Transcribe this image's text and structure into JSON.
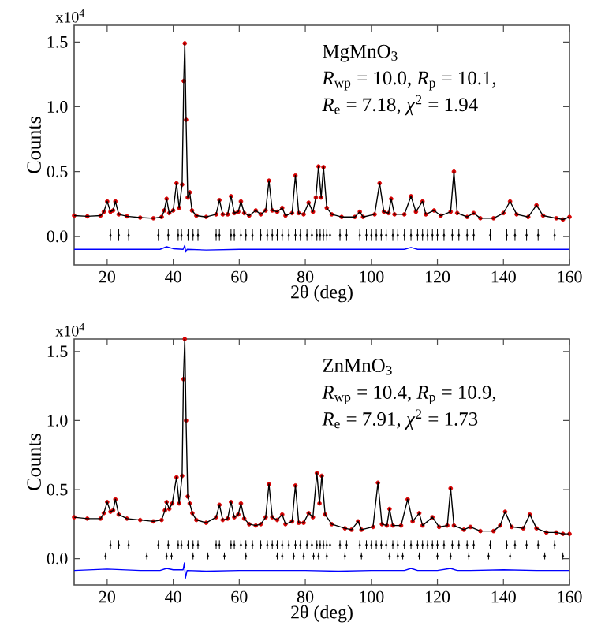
{
  "chart_data": [
    {
      "type": "line",
      "xlabel": "2θ (deg)",
      "ylabel": "Counts",
      "xlim": [
        10,
        160
      ],
      "ylim": [
        -0.22,
        1.63
      ],
      "xticks": [
        20,
        40,
        60,
        80,
        100,
        120,
        140,
        160
      ],
      "yticks": [
        {
          "value": 0,
          "label": "0.0"
        },
        {
          "value": 0.5,
          "label": "0.5"
        },
        {
          "value": 1.0,
          "label": "1.0"
        },
        1.5
      ],
      "annotations": [
        "x10$^{4}$",
        "MgMnO$_{3}$",
        "*R*$_{wp}$ = 10.0, *R*$_{p}$ = 10.1,",
        "*R*$_{e}$ = 7.18, *χ*$^{2}$ = 1.94"
      ],
      "x": [
        10,
        14,
        18,
        19,
        20,
        21,
        21.8,
        22.5,
        23.5,
        26,
        30,
        34,
        36.5,
        37.3,
        38,
        38.8,
        40,
        41,
        41.8,
        42.7,
        43.2,
        43.5,
        43.9,
        44.4,
        45,
        45.7,
        47,
        50,
        53,
        54,
        55,
        56.5,
        57.5,
        58.5,
        59.7,
        60.5,
        61.5,
        63,
        65,
        66.5,
        68,
        69,
        70,
        71.5,
        73,
        74,
        76,
        77,
        78,
        79.5,
        81,
        82.3,
        83.2,
        84,
        84.8,
        85.5,
        86.5,
        88,
        91,
        95,
        96.5,
        97.5,
        101,
        102.5,
        103.8,
        105.2,
        106,
        107,
        110,
        112,
        113.5,
        115.5,
        116.5,
        119,
        121,
        124,
        125,
        126,
        129,
        131,
        133,
        137,
        140,
        142,
        144,
        147.5,
        150,
        152,
        156,
        158,
        160
      ],
      "series": [
        {
          "type": "scatter",
          "marker": "circle",
          "color": "#d40000",
          "values": [
            0.16,
            0.155,
            0.16,
            0.19,
            0.27,
            0.19,
            0.2,
            0.27,
            0.17,
            0.155,
            0.145,
            0.14,
            0.15,
            0.2,
            0.29,
            0.18,
            0.2,
            0.41,
            0.22,
            0.4,
            1.2,
            1.49,
            0.9,
            0.3,
            0.34,
            0.2,
            0.16,
            0.15,
            0.17,
            0.28,
            0.17,
            0.17,
            0.31,
            0.18,
            0.19,
            0.27,
            0.18,
            0.16,
            0.2,
            0.17,
            0.2,
            0.43,
            0.2,
            0.19,
            0.22,
            0.16,
            0.18,
            0.47,
            0.18,
            0.17,
            0.26,
            0.19,
            0.3,
            0.54,
            0.3,
            0.535,
            0.22,
            0.17,
            0.15,
            0.15,
            0.19,
            0.15,
            0.17,
            0.41,
            0.19,
            0.18,
            0.29,
            0.17,
            0.17,
            0.31,
            0.19,
            0.27,
            0.17,
            0.2,
            0.16,
            0.19,
            0.5,
            0.18,
            0.15,
            0.18,
            0.14,
            0.14,
            0.18,
            0.27,
            0.17,
            0.15,
            0.24,
            0.16,
            0.14,
            0.13,
            0.15
          ]
        },
        {
          "color": "#000000",
          "values": [
            0.16,
            0.155,
            0.16,
            0.19,
            0.27,
            0.19,
            0.2,
            0.27,
            0.17,
            0.155,
            0.145,
            0.14,
            0.15,
            0.2,
            0.29,
            0.18,
            0.2,
            0.41,
            0.22,
            0.4,
            1.2,
            1.49,
            0.9,
            0.3,
            0.34,
            0.2,
            0.16,
            0.15,
            0.17,
            0.28,
            0.17,
            0.17,
            0.31,
            0.18,
            0.19,
            0.27,
            0.18,
            0.16,
            0.2,
            0.17,
            0.2,
            0.43,
            0.2,
            0.19,
            0.22,
            0.16,
            0.18,
            0.47,
            0.18,
            0.17,
            0.26,
            0.19,
            0.3,
            0.54,
            0.3,
            0.535,
            0.22,
            0.17,
            0.15,
            0.15,
            0.19,
            0.15,
            0.17,
            0.41,
            0.19,
            0.18,
            0.29,
            0.17,
            0.17,
            0.31,
            0.19,
            0.27,
            0.17,
            0.2,
            0.16,
            0.19,
            0.5,
            0.18,
            0.15,
            0.18,
            0.14,
            0.14,
            0.18,
            0.27,
            0.17,
            0.15,
            0.24,
            0.16,
            0.14,
            0.13,
            0.15
          ]
        },
        {
          "color": "#0000ff",
          "x": [
            10,
            20,
            30,
            36,
            38,
            40,
            43,
            43.5,
            43.8,
            44.2,
            50,
            60,
            70,
            80,
            90,
            100,
            110,
            112,
            114,
            120,
            130,
            140,
            150,
            160
          ],
          "values": [
            -0.1,
            -0.1,
            -0.1,
            -0.1,
            -0.08,
            -0.095,
            -0.1,
            -0.07,
            -0.12,
            -0.1,
            -0.105,
            -0.1,
            -0.1,
            -0.1,
            -0.1,
            -0.1,
            -0.1,
            -0.085,
            -0.1,
            -0.1,
            -0.1,
            -0.1,
            -0.1,
            -0.1
          ]
        },
        {
          "type": "scatter",
          "marker": "diamond",
          "color": "#000000",
          "x": [
            21,
            23.5,
            26.5,
            35.5,
            38.5,
            41.5,
            42.5,
            44.5,
            46,
            47.5,
            53,
            54,
            57.5,
            58.5,
            60.5,
            62,
            64,
            66.5,
            68.5,
            70,
            71.5,
            73,
            75,
            77,
            78.5,
            80.5,
            82,
            83.5,
            84.5,
            85.5,
            86.5,
            87.5,
            90.5,
            92.5,
            96.5,
            98.5,
            100,
            101.5,
            103,
            104.5,
            106.5,
            108,
            110,
            112,
            114,
            115.5,
            117,
            118.5,
            120,
            122,
            124.5,
            126.5,
            129,
            131,
            136,
            141,
            143.5,
            147,
            150.5,
            155.5
          ],
          "values": [
            0.01,
            0.01,
            0.01,
            0.01,
            0.01,
            0.01,
            0.01,
            0.01,
            0.01,
            0.01,
            0.01,
            0.01,
            0.01,
            0.01,
            0.01,
            0.01,
            0.01,
            0.01,
            0.01,
            0.01,
            0.01,
            0.01,
            0.01,
            0.01,
            0.01,
            0.01,
            0.01,
            0.01,
            0.01,
            0.01,
            0.01,
            0.01,
            0.01,
            0.01,
            0.01,
            0.01,
            0.01,
            0.01,
            0.01,
            0.01,
            0.01,
            0.01,
            0.01,
            0.01,
            0.01,
            0.01,
            0.01,
            0.01,
            0.01,
            0.01,
            0.01,
            0.01,
            0.01,
            0.01,
            0.01,
            0.01,
            0.01,
            0.01,
            0.01,
            0.01
          ],
          "errors": [
            0.045,
            0.045,
            0.045,
            0.045,
            0.045,
            0.045,
            0.045,
            0.045,
            0.045,
            0.045,
            0.045,
            0.045,
            0.045,
            0.045,
            0.045,
            0.045,
            0.045,
            0.045,
            0.045,
            0.045,
            0.045,
            0.045,
            0.045,
            0.045,
            0.045,
            0.045,
            0.045,
            0.045,
            0.045,
            0.045,
            0.045,
            0.045,
            0.045,
            0.045,
            0.045,
            0.045,
            0.045,
            0.045,
            0.045,
            0.045,
            0.045,
            0.045,
            0.045,
            0.045,
            0.045,
            0.045,
            0.045,
            0.045,
            0.045,
            0.045,
            0.045,
            0.045,
            0.045,
            0.045,
            0.045,
            0.045,
            0.045,
            0.045,
            0.045,
            0.045
          ]
        }
      ]
    },
    {
      "type": "line",
      "xlabel": "2θ (deg)",
      "ylabel": "Counts",
      "xlim": [
        10,
        160
      ],
      "ylim": [
        -0.19,
        1.59
      ],
      "xticks": [
        20,
        40,
        60,
        80,
        100,
        120,
        140,
        160
      ],
      "yticks": [
        {
          "value": 0,
          "label": "0.0"
        },
        {
          "value": 0.5,
          "label": "0.5"
        },
        {
          "value": 1.0,
          "label": "1.0"
        },
        1.5
      ],
      "annotations": [
        "x10$^{4}$",
        "ZnMnO$_{3}$",
        "*R*$_{wp}$ = 10.4, *R*$_{p}$ = 10.9,",
        "*R*$_{e}$ = 7.91, *χ*$^{2}$ = 1.73"
      ],
      "x": [
        10,
        14,
        18,
        19,
        20,
        21,
        21.8,
        22.5,
        23.5,
        26,
        30,
        34,
        36.5,
        37.5,
        38,
        38.8,
        39.7,
        41,
        41.8,
        42.7,
        43.1,
        43.5,
        43.9,
        44.4,
        45,
        45.8,
        47,
        50,
        53,
        54,
        55,
        56.5,
        57.5,
        58.5,
        59.7,
        60.5,
        61.5,
        63,
        65,
        66.5,
        68,
        69,
        70,
        71.5,
        73,
        74,
        76,
        77,
        78,
        79.5,
        81,
        82.3,
        83.5,
        84.3,
        85,
        86,
        88,
        92,
        94,
        96,
        97,
        100.5,
        102,
        103.2,
        104.7,
        105.5,
        106.5,
        109,
        111,
        112.5,
        114.5,
        115.5,
        118.5,
        120.5,
        123,
        124,
        125,
        128,
        130,
        133,
        137,
        139,
        140.5,
        142.5,
        146,
        148,
        150,
        153,
        156,
        158,
        160
      ],
      "series": [
        {
          "type": "scatter",
          "marker": "circle",
          "color": "#d40000",
          "values": [
            0.3,
            0.29,
            0.29,
            0.33,
            0.41,
            0.34,
            0.35,
            0.43,
            0.32,
            0.29,
            0.28,
            0.27,
            0.28,
            0.35,
            0.41,
            0.36,
            0.4,
            0.59,
            0.4,
            0.6,
            1.3,
            1.59,
            1.0,
            0.45,
            0.4,
            0.33,
            0.28,
            0.26,
            0.3,
            0.39,
            0.28,
            0.29,
            0.41,
            0.3,
            0.32,
            0.4,
            0.29,
            0.25,
            0.24,
            0.25,
            0.3,
            0.54,
            0.3,
            0.28,
            0.32,
            0.25,
            0.27,
            0.53,
            0.26,
            0.26,
            0.33,
            0.3,
            0.62,
            0.4,
            0.6,
            0.32,
            0.25,
            0.22,
            0.21,
            0.27,
            0.21,
            0.23,
            0.55,
            0.25,
            0.24,
            0.36,
            0.24,
            0.24,
            0.43,
            0.27,
            0.33,
            0.24,
            0.3,
            0.23,
            0.24,
            0.51,
            0.24,
            0.21,
            0.23,
            0.2,
            0.2,
            0.24,
            0.34,
            0.23,
            0.22,
            0.32,
            0.22,
            0.19,
            0.19,
            0.18,
            0.18
          ]
        },
        {
          "color": "#000000",
          "values": [
            0.3,
            0.29,
            0.29,
            0.33,
            0.41,
            0.34,
            0.35,
            0.43,
            0.32,
            0.29,
            0.28,
            0.27,
            0.28,
            0.35,
            0.41,
            0.36,
            0.4,
            0.59,
            0.4,
            0.6,
            1.3,
            1.59,
            1.0,
            0.45,
            0.4,
            0.33,
            0.28,
            0.26,
            0.3,
            0.39,
            0.28,
            0.29,
            0.41,
            0.3,
            0.32,
            0.4,
            0.29,
            0.25,
            0.24,
            0.25,
            0.3,
            0.54,
            0.3,
            0.28,
            0.32,
            0.25,
            0.27,
            0.53,
            0.26,
            0.26,
            0.33,
            0.3,
            0.62,
            0.4,
            0.6,
            0.32,
            0.25,
            0.22,
            0.21,
            0.27,
            0.21,
            0.23,
            0.55,
            0.25,
            0.24,
            0.36,
            0.24,
            0.24,
            0.43,
            0.27,
            0.33,
            0.24,
            0.3,
            0.23,
            0.24,
            0.51,
            0.24,
            0.21,
            0.23,
            0.2,
            0.2,
            0.24,
            0.34,
            0.23,
            0.22,
            0.32,
            0.22,
            0.19,
            0.19,
            0.18,
            0.18
          ]
        },
        {
          "color": "#0000ff",
          "x": [
            10,
            20,
            30,
            36,
            38,
            40,
            43,
            43.4,
            43.7,
            44.2,
            50,
            60,
            70,
            80,
            90,
            100,
            110,
            112,
            114,
            120,
            124,
            126,
            130,
            140,
            150,
            160
          ],
          "values": [
            -0.085,
            -0.075,
            -0.085,
            -0.085,
            -0.07,
            -0.08,
            -0.08,
            -0.03,
            -0.14,
            -0.085,
            -0.09,
            -0.085,
            -0.085,
            -0.085,
            -0.09,
            -0.085,
            -0.085,
            -0.07,
            -0.085,
            -0.085,
            -0.07,
            -0.085,
            -0.085,
            -0.08,
            -0.085,
            -0.085
          ]
        },
        {
          "type": "scatter",
          "marker": "diamond",
          "color": "#000000",
          "x": [
            21,
            23.5,
            26.5,
            35.5,
            38.5,
            41.5,
            42.5,
            44.5,
            46,
            47.5,
            53,
            54,
            57.5,
            58.5,
            60.5,
            62,
            64,
            66.5,
            68.5,
            70,
            71.5,
            73,
            75,
            77,
            78.5,
            80.5,
            82,
            83.5,
            84.5,
            85.5,
            86.5,
            87.5,
            90.5,
            92.5,
            96.5,
            98.5,
            100,
            101.5,
            103,
            104.5,
            106.5,
            108,
            110,
            112,
            114,
            115.5,
            117,
            118.5,
            120,
            122,
            124.5,
            126.5,
            129,
            131,
            136,
            141,
            143.5,
            147,
            150.5,
            155.5
          ],
          "values": [
            0.1,
            0.1,
            0.1,
            0.1,
            0.1,
            0.1,
            0.1,
            0.1,
            0.1,
            0.1,
            0.1,
            0.1,
            0.1,
            0.1,
            0.1,
            0.1,
            0.1,
            0.1,
            0.1,
            0.1,
            0.1,
            0.1,
            0.1,
            0.1,
            0.1,
            0.1,
            0.1,
            0.1,
            0.1,
            0.1,
            0.1,
            0.1,
            0.1,
            0.1,
            0.1,
            0.1,
            0.1,
            0.1,
            0.1,
            0.1,
            0.1,
            0.1,
            0.1,
            0.1,
            0.1,
            0.1,
            0.1,
            0.1,
            0.1,
            0.1,
            0.1,
            0.1,
            0.1,
            0.1,
            0.1,
            0.1,
            0.1,
            0.1,
            0.1,
            0.1
          ],
          "errors": [
            0.033,
            0.033,
            0.033,
            0.033,
            0.033,
            0.033,
            0.033,
            0.033,
            0.033,
            0.033,
            0.033,
            0.033,
            0.033,
            0.033,
            0.033,
            0.033,
            0.033,
            0.033,
            0.033,
            0.033,
            0.033,
            0.033,
            0.033,
            0.033,
            0.033,
            0.033,
            0.033,
            0.033,
            0.033,
            0.033,
            0.033,
            0.033,
            0.033,
            0.033,
            0.033,
            0.033,
            0.033,
            0.033,
            0.033,
            0.033,
            0.033,
            0.033,
            0.033,
            0.033,
            0.033,
            0.033,
            0.033,
            0.033,
            0.033,
            0.033,
            0.033,
            0.033,
            0.033,
            0.033,
            0.033,
            0.033,
            0.033,
            0.033,
            0.033,
            0.033
          ]
        },
        {
          "type": "scatter",
          "marker": "diamond",
          "color": "#000000",
          "x": [
            19.5,
            32,
            38,
            39.5,
            46,
            50.5,
            55.5,
            62,
            71.5,
            73,
            76.5,
            79.5,
            82.5,
            84,
            86.5,
            92,
            97,
            105.5,
            108,
            109.5,
            114.5,
            120,
            124,
            129.5,
            135.5,
            142,
            152.5,
            158
          ],
          "values": [
            0.02,
            0.02,
            0.02,
            0.02,
            0.02,
            0.02,
            0.02,
            0.02,
            0.02,
            0.02,
            0.02,
            0.02,
            0.02,
            0.02,
            0.02,
            0.02,
            0.02,
            0.02,
            0.02,
            0.02,
            0.02,
            0.02,
            0.02,
            0.02,
            0.02,
            0.02,
            0.02,
            0.02
          ],
          "errors": [
            0.025,
            0.025,
            0.025,
            0.025,
            0.025,
            0.025,
            0.025,
            0.025,
            0.025,
            0.025,
            0.025,
            0.025,
            0.025,
            0.025,
            0.025,
            0.025,
            0.025,
            0.025,
            0.025,
            0.025,
            0.025,
            0.025,
            0.025,
            0.025,
            0.025,
            0.025,
            0.025,
            0.025
          ]
        }
      ]
    }
  ]
}
